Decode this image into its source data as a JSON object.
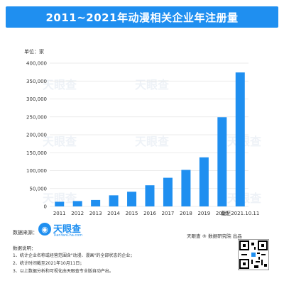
{
  "title": "2011~2021年动漫相关企业年注册量",
  "unit_label": "单位：家",
  "colors": {
    "bar": "#1f8ff0",
    "title_bg": "#1f8ff0",
    "grid": "#e5e5e5",
    "axis_text": "#333333"
  },
  "watermark": "天眼查",
  "chart_data": {
    "type": "bar",
    "categories": [
      "2011",
      "2012",
      "2013",
      "2014",
      "2015",
      "2016",
      "2017",
      "2018",
      "2019",
      "2020",
      "截至2021.10.11"
    ],
    "values": [
      13000,
      15000,
      18000,
      31000,
      41000,
      59000,
      80000,
      102000,
      137000,
      249000,
      374000
    ],
    "ylim": [
      0,
      400000
    ],
    "yticks": [
      "0",
      "50,000",
      "100,000",
      "150,000",
      "200,000",
      "250,000",
      "300,000",
      "350,000",
      "400,000"
    ],
    "ytick_values": [
      0,
      50000,
      100000,
      150000,
      200000,
      250000,
      300000,
      350000,
      400000
    ],
    "grid": true
  },
  "footer": {
    "source_label": "数据来源：",
    "logo_text": "天眼查",
    "logo_sub": "TianYanCha.com",
    "notes_label": "数据说明：",
    "notes": [
      "1、统计企业名称或经营范围含\"动漫、漫画\"的全部状态的企业；",
      "2、统计时间截至2021年10月11日；",
      "3、以上数据分析和可视化由天眼查专业版自动产出。"
    ],
    "publisher": "天眼查 ® 数据研究院 出品"
  }
}
